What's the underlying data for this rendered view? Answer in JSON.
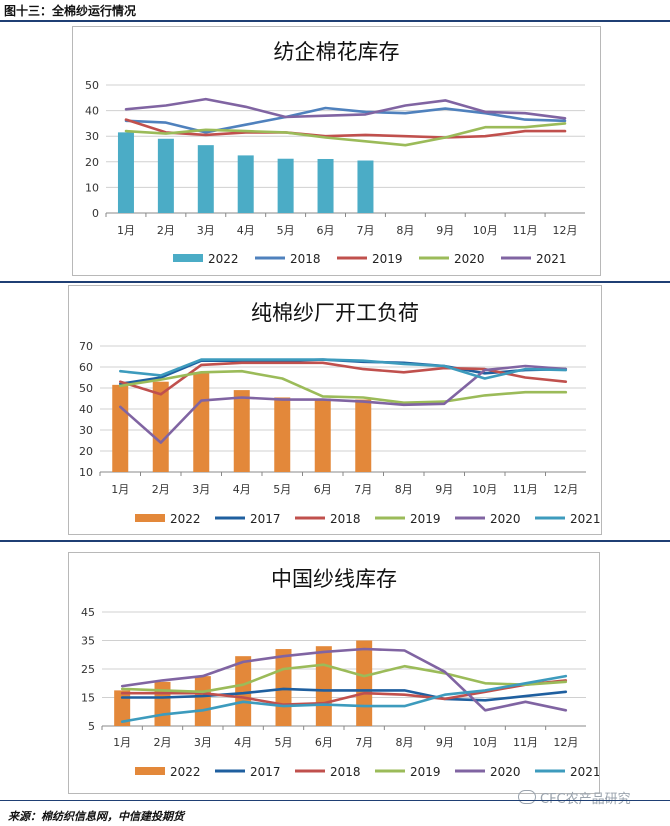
{
  "figure_title": "图十三：全棉纱运行情况",
  "source": "来源：棉纺织信息网，中信建投期货",
  "watermark": "CFC农产品研究",
  "chart_data": [
    {
      "type": "bar+line",
      "title": "纺企棉花库存",
      "categories": [
        "1月",
        "2月",
        "3月",
        "4月",
        "5月",
        "6月",
        "7月",
        "8月",
        "9月",
        "10月",
        "11月",
        "12月"
      ],
      "ylim": [
        0,
        50
      ],
      "yticks": [
        0,
        10,
        20,
        30,
        40,
        50
      ],
      "grid": true,
      "legend_position": "bottom",
      "bar_series": {
        "name": "2022",
        "color": "#4bacc6",
        "values": [
          31.5,
          29,
          26.5,
          22.5,
          21.2,
          21.1,
          20.5,
          null,
          null,
          null,
          null,
          null
        ]
      },
      "series": [
        {
          "name": "2018",
          "color": "#4f81bd",
          "values": [
            36,
            35.3,
            31.5,
            34.5,
            37.5,
            41,
            39.5,
            39,
            40.8,
            39,
            36.5,
            36
          ]
        },
        {
          "name": "2019",
          "color": "#c0504d",
          "values": [
            36.5,
            31.5,
            30.5,
            31.5,
            31.5,
            30,
            30.5,
            30,
            29.5,
            30,
            32,
            32
          ]
        },
        {
          "name": "2020",
          "color": "#9bbb59",
          "values": [
            32,
            31,
            32.5,
            32,
            31.5,
            29.5,
            28,
            26.5,
            29.5,
            33.5,
            33.5,
            35
          ]
        },
        {
          "name": "2021",
          "color": "#8064a2",
          "values": [
            40.5,
            42,
            44.5,
            41.5,
            37.5,
            38,
            38.5,
            42,
            44,
            39.5,
            39,
            37
          ]
        }
      ]
    },
    {
      "type": "bar+line",
      "title": "纯棉纱厂开工负荷",
      "categories": [
        "1月",
        "2月",
        "3月",
        "4月",
        "5月",
        "6月",
        "7月",
        "8月",
        "9月",
        "10月",
        "11月",
        "12月"
      ],
      "ylim": [
        10,
        70
      ],
      "yticks": [
        10,
        20,
        30,
        40,
        50,
        60,
        70
      ],
      "grid": true,
      "legend_position": "bottom",
      "bar_series": {
        "name": "2022",
        "color": "#e3883a",
        "values": [
          51.5,
          53,
          57.5,
          49,
          45.5,
          45,
          44.5,
          null,
          null,
          null,
          null,
          null
        ]
      },
      "series": [
        {
          "name": "2017",
          "color": "#1f5f9f",
          "values": [
            52,
            55,
            63,
            63,
            63,
            63.5,
            62.5,
            62,
            60.5,
            57,
            58.5,
            59
          ]
        },
        {
          "name": "2018",
          "color": "#c0504d",
          "values": [
            53,
            47,
            61,
            62,
            62,
            62,
            59,
            57.5,
            59.5,
            59,
            55,
            53
          ]
        },
        {
          "name": "2019",
          "color": "#9bbb59",
          "values": [
            51,
            54,
            57.5,
            58,
            54.5,
            46,
            45.5,
            43,
            43.5,
            46.5,
            48,
            48
          ]
        },
        {
          "name": "2020",
          "color": "#8064a2",
          "values": [
            41,
            24,
            44,
            45.5,
            44.5,
            44.5,
            43.5,
            42,
            42.5,
            58.5,
            60.5,
            59
          ]
        },
        {
          "name": "2021",
          "color": "#3d9bbd",
          "values": [
            58,
            56,
            63.5,
            63.5,
            63.5,
            63.5,
            63,
            61.5,
            60.5,
            54.5,
            59,
            58.5
          ]
        }
      ]
    },
    {
      "type": "bar+line",
      "title": "中国纱线库存",
      "categories": [
        "1月",
        "2月",
        "3月",
        "4月",
        "5月",
        "6月",
        "7月",
        "8月",
        "9月",
        "10月",
        "11月",
        "12月"
      ],
      "ylim": [
        5,
        45
      ],
      "yticks": [
        5,
        15,
        25,
        35,
        45
      ],
      "grid": true,
      "legend_position": "bottom",
      "bar_series": {
        "name": "2022",
        "color": "#e3883a",
        "values": [
          17.5,
          20.5,
          22.5,
          29.5,
          32,
          33,
          35,
          null,
          null,
          null,
          null,
          null
        ]
      },
      "series": [
        {
          "name": "2017",
          "color": "#1f5f9f",
          "values": [
            15,
            15,
            15.5,
            16.5,
            18,
            17.5,
            17.5,
            17.5,
            14.5,
            14,
            15.5,
            17
          ]
        },
        {
          "name": "2018",
          "color": "#c0504d",
          "values": [
            16.5,
            16.5,
            16.5,
            15,
            12.5,
            13,
            16.5,
            16,
            14.5,
            17,
            19.5,
            21
          ]
        },
        {
          "name": "2019",
          "color": "#9bbb59",
          "values": [
            18,
            17.5,
            17,
            19.5,
            25,
            26.5,
            22.5,
            26,
            23.5,
            20,
            19.5,
            20.5
          ]
        },
        {
          "name": "2020",
          "color": "#8064a2",
          "values": [
            19,
            21,
            22.5,
            27.5,
            29.5,
            31,
            32,
            31.5,
            24,
            10.5,
            13.5,
            10.5
          ]
        },
        {
          "name": "2021",
          "color": "#3d9bbd",
          "values": [
            6.5,
            9,
            10.5,
            13.5,
            12,
            12.5,
            12,
            12,
            16,
            17.5,
            20,
            22.5
          ]
        }
      ]
    }
  ]
}
